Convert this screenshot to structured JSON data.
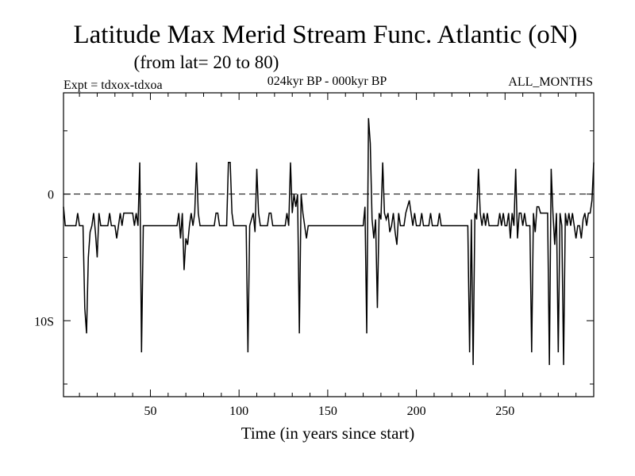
{
  "chart_data": {
    "type": "line",
    "title": "Latitude Max Merid Stream Func. Atlantic (oN)",
    "subtitle": "(from lat= 20 to 80)",
    "expt_label": "Expt = tdxox-tdxoa",
    "period_label": "024kyr BP - 000kyr BP",
    "months_label": "ALL_MONTHS",
    "xlabel": "Time (in years since start)",
    "ylabel": "",
    "xlim": [
      1,
      300
    ],
    "ylim": [
      -16,
      8
    ],
    "x_ticks": [
      {
        "value": 50,
        "label": "50"
      },
      {
        "value": 100,
        "label": "100"
      },
      {
        "value": 150,
        "label": "150"
      },
      {
        "value": 200,
        "label": "200"
      },
      {
        "value": 250,
        "label": "250"
      }
    ],
    "y_ticks": [
      {
        "value": 0,
        "label": "0"
      },
      {
        "value": -10,
        "label": "10S"
      }
    ],
    "reference_line": {
      "y": 0,
      "style": "dashed"
    },
    "series": [
      {
        "points": [
          [
            1,
            -1
          ],
          [
            2,
            -2.5
          ],
          [
            8,
            -2.5
          ],
          [
            9,
            -1.5
          ],
          [
            10,
            -2.5
          ],
          [
            12,
            -2.5
          ],
          [
            13,
            -9
          ],
          [
            14,
            -11
          ],
          [
            15,
            -5
          ],
          [
            16,
            -3
          ],
          [
            17,
            -2.5
          ],
          [
            18,
            -1.5
          ],
          [
            19,
            -3
          ],
          [
            20,
            -5
          ],
          [
            21,
            -1.5
          ],
          [
            22,
            -2.5
          ],
          [
            26,
            -2.5
          ],
          [
            27,
            -1.5
          ],
          [
            28,
            -2.5
          ],
          [
            30,
            -2.5
          ],
          [
            31,
            -3.5
          ],
          [
            32,
            -2.5
          ],
          [
            33,
            -1.5
          ],
          [
            34,
            -2.5
          ],
          [
            35,
            -1.5
          ],
          [
            40,
            -1.5
          ],
          [
            41,
            -2.5
          ],
          [
            42,
            -1.5
          ],
          [
            43,
            -2.5
          ],
          [
            44,
            2.5
          ],
          [
            45,
            -12.5
          ],
          [
            46,
            -2.5
          ],
          [
            65,
            -2.5
          ],
          [
            66,
            -1.5
          ],
          [
            67,
            -3.5
          ],
          [
            68,
            -1.5
          ],
          [
            69,
            -6
          ],
          [
            70,
            -3.5
          ],
          [
            71,
            -4
          ],
          [
            72,
            -2.5
          ],
          [
            73,
            -1.5
          ],
          [
            74,
            -2.5
          ],
          [
            75,
            -1.5
          ],
          [
            76,
            2.5
          ],
          [
            77,
            -1.5
          ],
          [
            78,
            -2.5
          ],
          [
            86,
            -2.5
          ],
          [
            87,
            -1.5
          ],
          [
            88,
            -1.5
          ],
          [
            89,
            -2.5
          ],
          [
            93,
            -2.5
          ],
          [
            94,
            2.5
          ],
          [
            95,
            2.5
          ],
          [
            96,
            -1.5
          ],
          [
            97,
            -2.5
          ],
          [
            104,
            -2.5
          ],
          [
            105,
            -12.5
          ],
          [
            106,
            -2.5
          ],
          [
            108,
            -1.5
          ],
          [
            109,
            -3
          ],
          [
            110,
            2
          ],
          [
            111,
            -1.5
          ],
          [
            112,
            -2.5
          ],
          [
            116,
            -2.5
          ],
          [
            117,
            -1.5
          ],
          [
            118,
            -1.5
          ],
          [
            119,
            -2.5
          ],
          [
            126,
            -2.5
          ],
          [
            127,
            -1.5
          ],
          [
            128,
            -2.5
          ],
          [
            129,
            2.5
          ],
          [
            130,
            -1.5
          ],
          [
            131,
            0
          ],
          [
            132,
            -1
          ],
          [
            133,
            0
          ],
          [
            134,
            -11
          ],
          [
            135,
            0
          ],
          [
            136,
            -1.5
          ],
          [
            137,
            -2.5
          ],
          [
            138,
            -3.5
          ],
          [
            139,
            -2.5
          ],
          [
            155,
            -2.5
          ],
          [
            164,
            -2.5
          ],
          [
            170,
            -2.5
          ],
          [
            171,
            -1
          ],
          [
            172,
            -11
          ],
          [
            173,
            6
          ],
          [
            174,
            4
          ],
          [
            175,
            -2
          ],
          [
            176,
            -3.5
          ],
          [
            177,
            -2
          ],
          [
            178,
            -9
          ],
          [
            179,
            -1.5
          ],
          [
            180,
            -2
          ],
          [
            181,
            2.5
          ],
          [
            182,
            -1.5
          ],
          [
            183,
            -2
          ],
          [
            184,
            -1.5
          ],
          [
            185,
            -3
          ],
          [
            186,
            -2.5
          ],
          [
            187,
            -1.5
          ],
          [
            188,
            -3
          ],
          [
            189,
            -4
          ],
          [
            190,
            -1.5
          ],
          [
            191,
            -2.5
          ],
          [
            193,
            -2.5
          ],
          [
            194,
            -1.5
          ],
          [
            195,
            -1
          ],
          [
            196,
            -0.5
          ],
          [
            197,
            -1.5
          ],
          [
            198,
            -2.5
          ],
          [
            199,
            -1.5
          ],
          [
            200,
            -2.5
          ],
          [
            202,
            -2.5
          ],
          [
            203,
            -1.5
          ],
          [
            204,
            -2.5
          ],
          [
            207,
            -2.5
          ],
          [
            208,
            -1.5
          ],
          [
            209,
            -2.5
          ],
          [
            212,
            -2.5
          ],
          [
            213,
            -1.5
          ],
          [
            214,
            -2.5
          ],
          [
            229,
            -2.5
          ],
          [
            230,
            -12.5
          ],
          [
            231,
            -2
          ],
          [
            232,
            -13.5
          ],
          [
            233,
            -1.5
          ],
          [
            234,
            -2
          ],
          [
            235,
            2
          ],
          [
            236,
            -1.5
          ],
          [
            237,
            -2.5
          ],
          [
            238,
            -1.5
          ],
          [
            239,
            -2.5
          ],
          [
            240,
            -1.5
          ],
          [
            241,
            -2.5
          ],
          [
            246,
            -2.5
          ],
          [
            247,
            -1.5
          ],
          [
            248,
            -2.5
          ],
          [
            249,
            -1.5
          ],
          [
            250,
            -2.5
          ],
          [
            251,
            -2.5
          ],
          [
            252,
            -1.5
          ],
          [
            253,
            -3.5
          ],
          [
            254,
            -1.5
          ],
          [
            255,
            -2.5
          ],
          [
            256,
            2
          ],
          [
            257,
            -3.5
          ],
          [
            258,
            -1.5
          ],
          [
            259,
            -1.5
          ],
          [
            260,
            -2.5
          ],
          [
            261,
            -1.5
          ],
          [
            262,
            -2.5
          ],
          [
            264,
            -2.5
          ],
          [
            265,
            -12.5
          ],
          [
            266,
            -1.5
          ],
          [
            267,
            -3
          ],
          [
            268,
            -1
          ],
          [
            269,
            -1
          ],
          [
            270,
            -1.5
          ],
          [
            274,
            -1.5
          ],
          [
            275,
            -13.5
          ],
          [
            276,
            2
          ],
          [
            277,
            -1.5
          ],
          [
            278,
            -4
          ],
          [
            279,
            -1.5
          ],
          [
            280,
            -12.5
          ],
          [
            281,
            -1.5
          ],
          [
            282,
            -2.5
          ],
          [
            283,
            -13.5
          ],
          [
            284,
            -1.5
          ],
          [
            285,
            -2.5
          ],
          [
            286,
            -1.5
          ],
          [
            287,
            -2.5
          ],
          [
            288,
            -1.5
          ],
          [
            289,
            -2.5
          ],
          [
            290,
            -3.5
          ],
          [
            291,
            -2.5
          ],
          [
            292,
            -2.5
          ],
          [
            293,
            -3.5
          ],
          [
            294,
            -2
          ],
          [
            295,
            -1.5
          ],
          [
            296,
            -2.5
          ],
          [
            297,
            -1.5
          ],
          [
            298,
            -1.5
          ],
          [
            299,
            -0.5
          ],
          [
            300,
            2.5
          ]
        ]
      }
    ]
  }
}
